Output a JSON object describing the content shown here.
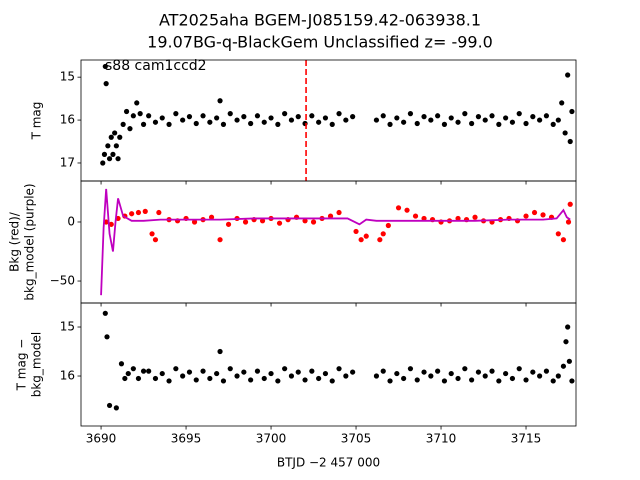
{
  "chart_data": [
    {
      "type": "scatter",
      "title": "AT2025aha  BGEM-J085159.42-063938.1",
      "subtitle": "19.07BG-q-BlackGem Unclassified z= -99.0",
      "annotation": "s88 cam1ccd2",
      "ylabel": [
        "T mag"
      ],
      "xlim": [
        3688.82,
        3717.94
      ],
      "ylim": [
        17.42,
        14.6
      ],
      "yticks": [
        15,
        16,
        17
      ],
      "vline": {
        "x": 3702.06,
        "color": "#ff0000"
      },
      "series": [
        {
          "color": "#000000",
          "x": [
            3690.1,
            3690.2,
            3690.25,
            3690.3,
            3690.4,
            3690.5,
            3690.6,
            3690.7,
            3690.8,
            3690.9,
            3691.0,
            3691.1,
            3691.3,
            3691.5,
            3691.7,
            3691.9,
            3692.1,
            3692.3,
            3692.5,
            3692.8,
            3693.2,
            3693.6,
            3694.0,
            3694.4,
            3694.8,
            3695.2,
            3695.6,
            3696.0,
            3696.4,
            3696.8,
            3697.2,
            3697.6,
            3698.0,
            3698.4,
            3698.8,
            3699.2,
            3699.6,
            3700.0,
            3700.4,
            3700.8,
            3701.2,
            3701.6,
            3702.0,
            3702.4,
            3702.8,
            3703.2,
            3703.6,
            3704.0,
            3704.4,
            3704.8,
            3697.0,
            3706.2,
            3706.6,
            3707.0,
            3707.4,
            3707.8,
            3708.2,
            3708.6,
            3709.0,
            3709.4,
            3709.8,
            3710.2,
            3710.6,
            3711.0,
            3711.4,
            3711.8,
            3712.2,
            3712.6,
            3713.0,
            3713.4,
            3713.8,
            3714.2,
            3714.6,
            3715.0,
            3715.4,
            3715.8,
            3716.2,
            3716.6,
            3716.9,
            3717.1,
            3717.3,
            3717.45,
            3717.6,
            3717.7
          ],
          "values": [
            17.0,
            16.8,
            14.75,
            15.15,
            16.6,
            16.9,
            16.4,
            16.8,
            16.3,
            16.6,
            16.9,
            16.4,
            16.1,
            15.8,
            16.2,
            15.9,
            15.6,
            15.85,
            16.1,
            15.9,
            16.05,
            15.95,
            16.1,
            15.85,
            16.0,
            15.92,
            16.08,
            15.9,
            16.05,
            15.95,
            16.1,
            15.85,
            16.0,
            15.92,
            16.08,
            15.9,
            16.05,
            15.95,
            16.1,
            15.85,
            16.0,
            15.92,
            16.08,
            15.9,
            16.05,
            15.95,
            16.1,
            15.85,
            16.0,
            15.92,
            15.55,
            16.0,
            15.9,
            16.1,
            15.95,
            16.05,
            15.85,
            16.08,
            15.92,
            16.0,
            15.9,
            16.1,
            15.95,
            16.05,
            15.85,
            16.08,
            15.92,
            16.0,
            15.9,
            16.1,
            15.95,
            16.05,
            15.85,
            16.08,
            15.92,
            16.0,
            15.9,
            16.1,
            16.0,
            15.6,
            16.3,
            14.95,
            16.5,
            15.8
          ]
        }
      ]
    },
    {
      "type": "scatter",
      "ylabel": [
        "Bkg (red)/",
        "bkg_model (purple)"
      ],
      "xlim": [
        3688.82,
        3717.94
      ],
      "ylim": [
        -68.6,
        34.7
      ],
      "yticks": [
        {
          "value": -50,
          "label": "−50"
        },
        0
      ],
      "series": [
        {
          "color": "#ff0000",
          "x": [
            3690.3,
            3690.6,
            3691.0,
            3691.4,
            3691.8,
            3692.2,
            3692.6,
            3693.0,
            3693.2,
            3693.4,
            3694.0,
            3694.5,
            3695.0,
            3695.5,
            3696.0,
            3696.5,
            3697.0,
            3697.5,
            3698.0,
            3698.5,
            3699.0,
            3699.5,
            3700.0,
            3700.5,
            3701.0,
            3701.5,
            3702.0,
            3702.5,
            3703.0,
            3703.5,
            3704.0,
            3705.0,
            3705.3,
            3705.6,
            3706.4,
            3706.6,
            3706.9,
            3707.5,
            3708.0,
            3708.5,
            3709.0,
            3709.5,
            3710.0,
            3710.5,
            3711.0,
            3711.5,
            3712.0,
            3712.5,
            3713.0,
            3713.5,
            3714.0,
            3714.5,
            3715.0,
            3715.5,
            3716.0,
            3716.5,
            3716.9,
            3717.2,
            3717.5,
            3717.6
          ],
          "values": [
            0,
            -2,
            3,
            5,
            7,
            8,
            9,
            -10,
            -15,
            8,
            2,
            1,
            3,
            0,
            2,
            4,
            -15,
            -2,
            3,
            0,
            2,
            1,
            3,
            -1,
            2,
            4,
            1,
            0,
            3,
            5,
            8,
            -8,
            -15,
            -12,
            -15,
            -10,
            -3,
            12,
            10,
            5,
            3,
            2,
            0,
            1,
            3,
            2,
            4,
            1,
            0,
            2,
            3,
            1,
            5,
            8,
            6,
            4,
            -10,
            -15,
            0,
            15
          ]
        },
        {
          "type": "line",
          "color": "#bf00bf",
          "x": [
            3690.0,
            3690.15,
            3690.3,
            3690.5,
            3690.7,
            3690.85,
            3691.0,
            3691.3,
            3691.8,
            3692.5,
            3693.5,
            3695,
            3697,
            3699,
            3701,
            3703,
            3704.5,
            3705.2,
            3705.6,
            3706.2,
            3706.8,
            3708,
            3710,
            3712,
            3714,
            3716,
            3716.8,
            3717.2,
            3717.4,
            3717.6
          ],
          "values": [
            -62,
            -5,
            28,
            -10,
            -25,
            0,
            20,
            5,
            1,
            1,
            2,
            2,
            2,
            3,
            3,
            3,
            3,
            -2,
            2,
            1,
            1,
            1,
            1,
            1,
            2,
            2,
            3,
            10,
            4,
            2
          ]
        }
      ]
    },
    {
      "type": "scatter",
      "ylabel": [
        "T mag −",
        "bkg_model"
      ],
      "xlabel": "BTJD −2 457 000",
      "xlim": [
        3688.82,
        3717.94
      ],
      "ylim": [
        17.02,
        14.51
      ],
      "yticks": [
        15,
        16
      ],
      "xticks": [
        3690,
        3695,
        3700,
        3705,
        3710,
        3715
      ],
      "series": [
        {
          "color": "#000000",
          "x": [
            3690.25,
            3690.35,
            3690.5,
            3690.9,
            3691.2,
            3691.4,
            3691.6,
            3691.9,
            3692.2,
            3692.5,
            3692.8,
            3693.2,
            3693.6,
            3694.0,
            3694.4,
            3694.8,
            3695.2,
            3695.6,
            3696.0,
            3696.4,
            3696.8,
            3697.2,
            3697.6,
            3698.0,
            3698.4,
            3698.8,
            3699.2,
            3699.6,
            3700.0,
            3700.4,
            3700.8,
            3701.2,
            3701.6,
            3702.0,
            3702.4,
            3702.8,
            3703.2,
            3703.6,
            3704.0,
            3704.4,
            3704.8,
            3697.0,
            3706.2,
            3706.6,
            3707.0,
            3707.4,
            3707.8,
            3708.2,
            3708.6,
            3709.0,
            3709.4,
            3709.8,
            3710.2,
            3710.6,
            3711.0,
            3711.4,
            3711.8,
            3712.2,
            3712.6,
            3713.0,
            3713.4,
            3713.8,
            3714.2,
            3714.6,
            3715.0,
            3715.4,
            3715.8,
            3716.2,
            3716.6,
            3716.9,
            3717.2,
            3717.35,
            3717.45,
            3717.55,
            3717.7
          ],
          "values": [
            14.72,
            15.2,
            16.6,
            16.65,
            15.75,
            16.05,
            15.95,
            15.85,
            16.05,
            15.9,
            15.9,
            16.05,
            15.95,
            16.1,
            15.85,
            16.0,
            15.92,
            16.08,
            15.9,
            16.05,
            15.95,
            16.1,
            15.85,
            16.0,
            15.92,
            16.08,
            15.9,
            16.05,
            15.95,
            16.1,
            15.85,
            16.0,
            15.92,
            16.08,
            15.9,
            16.05,
            15.95,
            16.1,
            15.85,
            16.0,
            15.92,
            15.5,
            16.0,
            15.9,
            16.1,
            15.95,
            16.05,
            15.85,
            16.08,
            15.92,
            16.0,
            15.9,
            16.1,
            15.95,
            16.05,
            15.85,
            16.08,
            15.92,
            16.0,
            15.9,
            16.1,
            15.95,
            16.05,
            15.85,
            16.08,
            15.92,
            16.0,
            15.9,
            16.1,
            16.0,
            15.8,
            15.3,
            15.0,
            15.7,
            16.1
          ]
        }
      ]
    }
  ]
}
